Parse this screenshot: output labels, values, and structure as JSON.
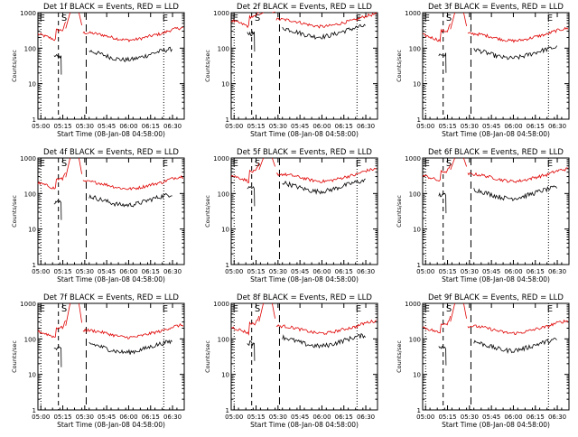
{
  "chart_data": {
    "type": "line",
    "panels": [
      {
        "title": "Det 1f BLACK = Events, RED = LLD",
        "event_y": 45,
        "lld_y": 200
      },
      {
        "title": "Det 2f BLACK = Events, RED = LLD",
        "event_y": 200,
        "lld_y": 480
      },
      {
        "title": "Det 3f BLACK = Events, RED = LLD",
        "event_y": 50,
        "lld_y": 190
      },
      {
        "title": "Det 4f BLACK = Events, RED = LLD",
        "event_y": 45,
        "lld_y": 160
      },
      {
        "title": "Det 5f BLACK = Events, RED = LLD",
        "event_y": 110,
        "lld_y": 260
      },
      {
        "title": "Det 6f BLACK = Events, RED = LLD",
        "event_y": 70,
        "lld_y": 260
      },
      {
        "title": "Det 7f BLACK = Events, RED = LLD",
        "event_y": 40,
        "lld_y": 130
      },
      {
        "title": "Det 8f BLACK = Events, RED = LLD",
        "event_y": 60,
        "lld_y": 170
      },
      {
        "title": "Det 9f BLACK = Events, RED = LLD",
        "event_y": 45,
        "lld_y": 170
      }
    ],
    "xlabel": "Start Time (08-Jan-08 04:58:00)",
    "ylabel": "Counts/sec",
    "xticks": [
      "05:00",
      "05:15",
      "05:30",
      "05:45",
      "06:00",
      "06:15",
      "06:30"
    ],
    "yticks": [
      "1",
      "10",
      "100",
      "1000"
    ],
    "markers": {
      "start": "E",
      "saa": "S",
      "end": "E"
    },
    "series": [
      {
        "name": "Events",
        "color": "#000000"
      },
      {
        "name": "LLD",
        "color": "#e00000"
      }
    ],
    "y_scale": "log",
    "ylim": [
      1,
      1000
    ],
    "xlim_minutes": [
      0,
      100
    ]
  }
}
